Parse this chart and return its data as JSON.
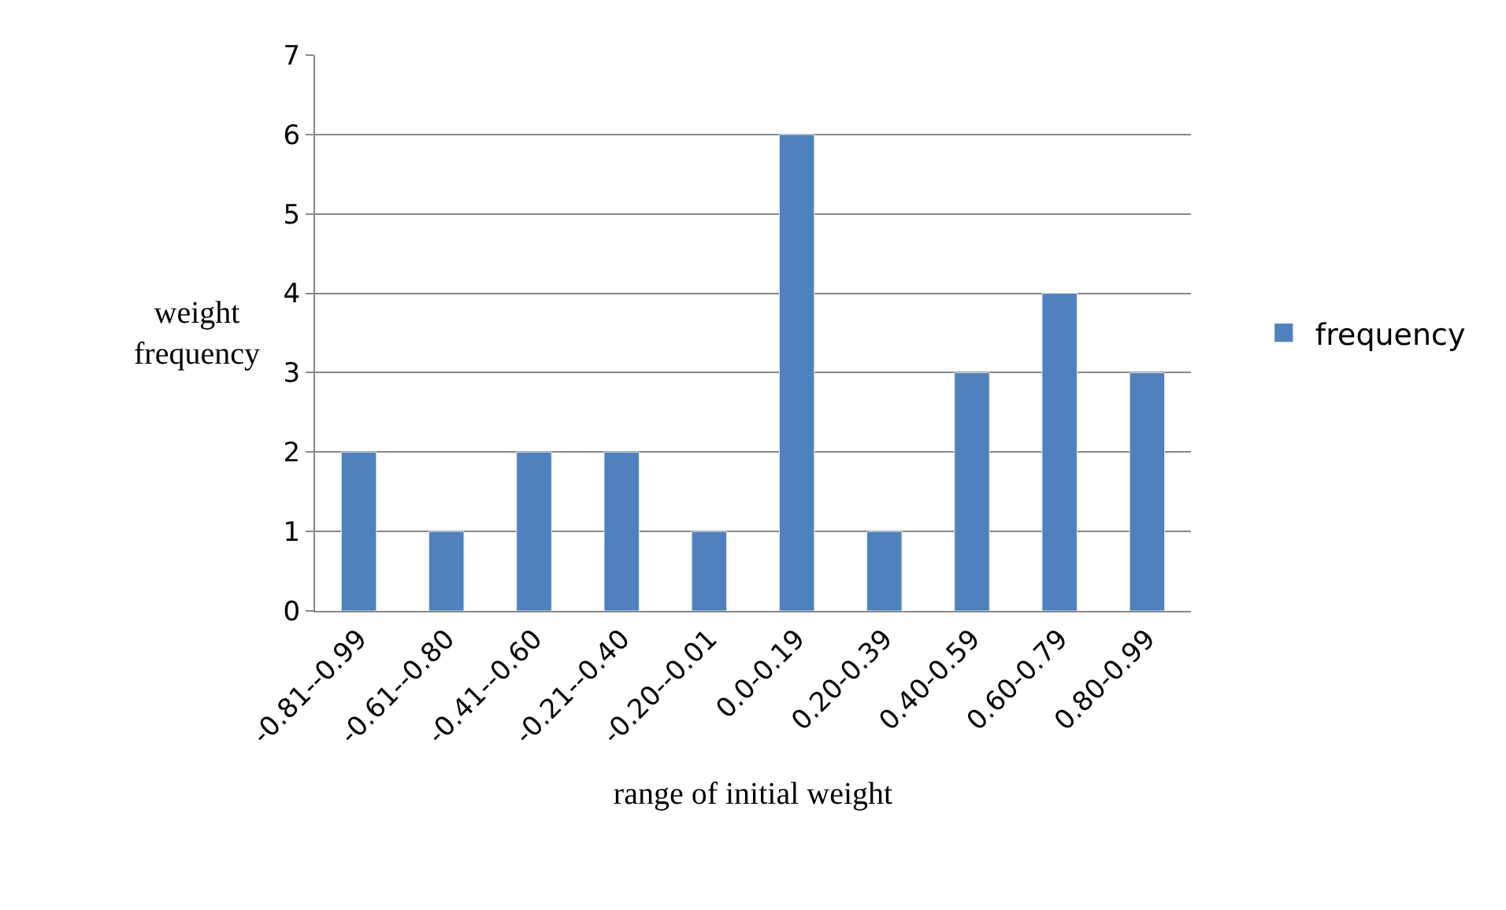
{
  "chart_data": {
    "type": "bar",
    "xlabel": "range of initial weight",
    "ylabel": "weight frequency",
    "categories": [
      "-0.81--0.99",
      "-0.61--0.80",
      "-0.41--0.60",
      "-0.21--0.40",
      "-0.20--0.01",
      "0.0-0.19",
      "0.20-0.39",
      "0.40-0.59",
      "0.60-0.79",
      "0.80-0.99"
    ],
    "series": [
      {
        "name": "frequency",
        "color": "#4f81bd",
        "values": [
          2,
          1,
          2,
          2,
          1,
          6,
          1,
          3,
          4,
          3
        ]
      }
    ],
    "ylim": [
      0,
      7
    ],
    "yticks": [
      0,
      1,
      2,
      3,
      4,
      5,
      6,
      7
    ],
    "grid": "y",
    "legend": "right"
  }
}
